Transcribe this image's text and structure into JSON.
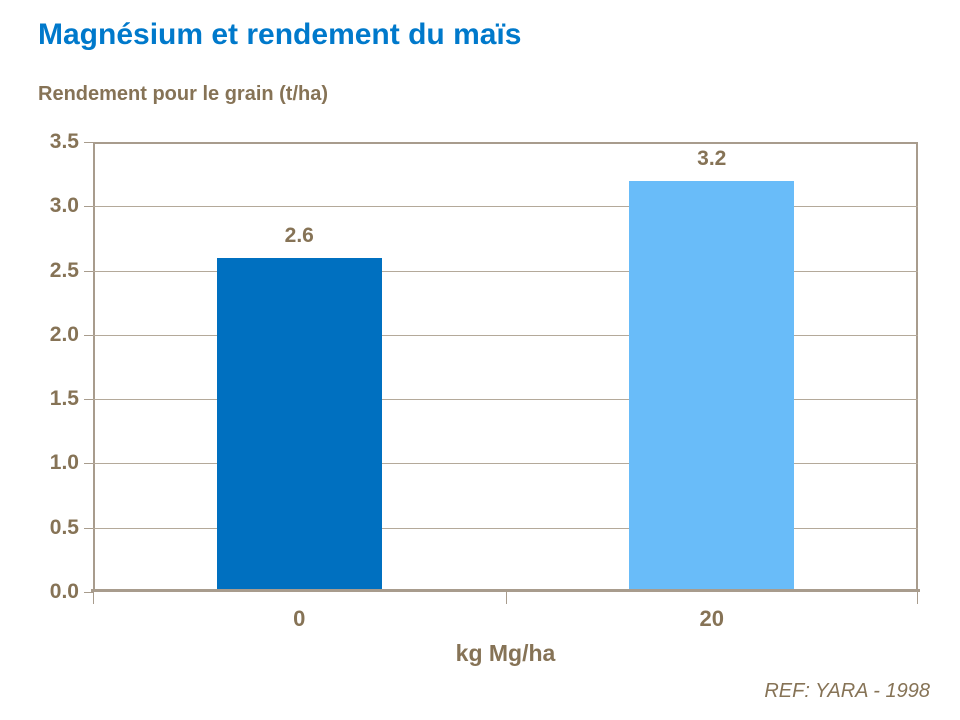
{
  "page": {
    "title": "Magnésium et rendement du maïs",
    "subtitle": "Rendement pour le grain (t/ha)",
    "footer_ref": "REF: YARA - 1998"
  },
  "chart_data": {
    "type": "bar",
    "title": "Magnésium et rendement du maïs",
    "subtitle": "Rendement pour le grain (t/ha)",
    "categories": [
      "0",
      "20"
    ],
    "values": [
      2.6,
      3.2
    ],
    "value_labels": [
      "2.6",
      "3.2"
    ],
    "bar_colors": [
      "#0070C0",
      "#69BCF9"
    ],
    "xlabel": "kg Mg/ha",
    "ylabel": "Rendement pour le grain (t/ha)",
    "ylim": [
      0,
      3.5
    ],
    "ytick_step": 0.5,
    "ytick_labels": [
      "0.0",
      "0.5",
      "1.0",
      "1.5",
      "2.0",
      "2.5",
      "3.0",
      "3.5"
    ],
    "grid": true,
    "legend_position": "none",
    "annotation": "REF: YARA - 1998"
  },
  "colors": {
    "title_blue": "#0079CB",
    "text_brown": "#867356",
    "axis_line": "#A89C8D",
    "gridline": "#B4A99A",
    "bar_dark_blue": "#0070C0",
    "bar_light_blue": "#69BCF9"
  }
}
